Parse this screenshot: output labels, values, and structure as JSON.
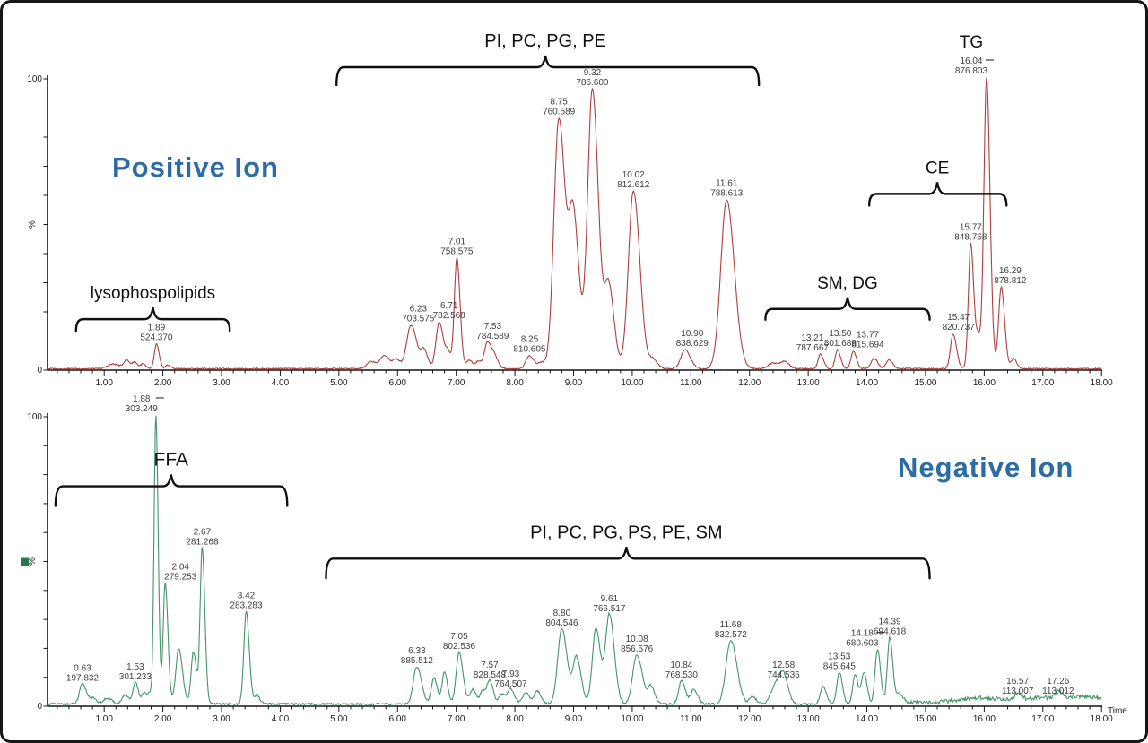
{
  "figure": {
    "background": "#ffffff",
    "border_color": "#161616"
  },
  "chart_data": [
    {
      "type": "line",
      "id": "positive-ion",
      "title": "Positive Ion",
      "title_color": "#2d6ba3",
      "trace_color": "#ad3f3d",
      "xlim": [
        0.05,
        18.0
      ],
      "ylim": [
        0,
        100
      ],
      "x_axis_title": "",
      "y_axis": {
        "max": "100",
        "min": "0",
        "unit": "%"
      },
      "xticks": [
        "1.00",
        "2.00",
        "3.00",
        "4.00",
        "5.00",
        "6.00",
        "7.00",
        "8.00",
        "9.00",
        "10.00",
        "11.00",
        "12.00",
        "13.00",
        "14.00",
        "15.00",
        "16.00",
        "17.00",
        "18.00"
      ],
      "noise": {
        "base": 0.15,
        "seed": 3,
        "regions": [
          {
            "to": 18.1,
            "amp": 0.55
          }
        ]
      },
      "peaks": [
        {
          "t": 1.15,
          "h": 1.6,
          "s": 0.09
        },
        {
          "t": 1.38,
          "h": 2.8,
          "s": 0.045
        },
        {
          "t": 1.52,
          "h": 2.2,
          "s": 0.04
        },
        {
          "t": 1.66,
          "h": 1.6,
          "s": 0.035
        },
        {
          "t": 1.89,
          "h": 8.5,
          "s": 0.035,
          "rt": "1.89",
          "mz": "524.370"
        },
        {
          "t": 2.08,
          "h": 1.2,
          "s": 0.04
        },
        {
          "t": 5.55,
          "h": 2.5,
          "s": 0.07
        },
        {
          "t": 5.78,
          "h": 4.5,
          "s": 0.07
        },
        {
          "t": 5.98,
          "h": 3.0,
          "s": 0.05
        },
        {
          "t": 6.23,
          "h": 15,
          "s": 0.075,
          "rt": "6.23",
          "mz": "703.575",
          "dx": 8
        },
        {
          "t": 6.45,
          "h": 6,
          "s": 0.05
        },
        {
          "t": 6.71,
          "h": 16,
          "s": 0.055,
          "rt": "6.71",
          "mz": "782.568",
          "dx": 11
        },
        {
          "t": 6.86,
          "h": 5,
          "s": 0.04
        },
        {
          "t": 7.01,
          "h": 38,
          "s": 0.042,
          "rt": "7.01",
          "mz": "758.575"
        },
        {
          "t": 7.22,
          "h": 3,
          "s": 0.05
        },
        {
          "t": 7.38,
          "h": 2.5,
          "s": 0.04
        },
        {
          "t": 7.53,
          "h": 9,
          "s": 0.05,
          "rt": "7.53",
          "mz": "784.589",
          "dx": 6
        },
        {
          "t": 7.65,
          "h": 4,
          "s": 0.05
        },
        {
          "t": 8.25,
          "h": 4.5,
          "s": 0.06,
          "rt": "8.25",
          "mz": "810.605"
        },
        {
          "t": 8.45,
          "h": 2,
          "s": 0.05
        },
        {
          "t": 8.75,
          "h": 86,
          "s": 0.085,
          "rt": "8.75",
          "mz": "760.589"
        },
        {
          "t": 9.0,
          "h": 50,
          "s": 0.075
        },
        {
          "t": 9.32,
          "h": 96,
          "s": 0.08,
          "rt": "9.32",
          "mz": "786.600"
        },
        {
          "t": 9.6,
          "h": 28,
          "s": 0.07
        },
        {
          "t": 10.02,
          "h": 61,
          "s": 0.085,
          "rt": "10.02",
          "mz": "812.612"
        },
        {
          "t": 10.35,
          "h": 3,
          "s": 0.06
        },
        {
          "t": 10.9,
          "h": 6.5,
          "s": 0.07,
          "rt": "10.90",
          "mz": "838.629",
          "dx": 8
        },
        {
          "t": 11.61,
          "h": 58,
          "s": 0.1,
          "rt": "11.61",
          "mz": "788.613"
        },
        {
          "t": 12.4,
          "h": 2,
          "s": 0.08
        },
        {
          "t": 12.6,
          "h": 2.2,
          "s": 0.06
        },
        {
          "t": 13.21,
          "h": 5,
          "s": 0.04,
          "rt": "13.21",
          "mz": "787.667",
          "dx": -9
        },
        {
          "t": 13.5,
          "h": 6.5,
          "s": 0.04,
          "rt": "13.50",
          "mz": "801.688",
          "dx": 3
        },
        {
          "t": 13.77,
          "h": 6,
          "s": 0.04,
          "rt": "13.77",
          "mz": "815.694",
          "dx": 16
        },
        {
          "t": 14.12,
          "h": 3.5,
          "s": 0.05
        },
        {
          "t": 14.38,
          "h": 3,
          "s": 0.05
        },
        {
          "t": 15.47,
          "h": 12,
          "s": 0.045,
          "rt": "15.47",
          "mz": "820.737",
          "dx": 6
        },
        {
          "t": 15.77,
          "h": 43,
          "s": 0.04,
          "rt": "15.77",
          "mz": "848.768"
        },
        {
          "t": 15.9,
          "h": 10,
          "s": 0.04
        },
        {
          "t": 16.04,
          "h": 100,
          "s": 0.045,
          "rt": "16.04",
          "mz": "876.803",
          "dx": -17,
          "dash": true
        },
        {
          "t": 16.29,
          "h": 28,
          "s": 0.045,
          "rt": "16.29",
          "mz": "878.812",
          "dx": 10
        },
        {
          "t": 16.5,
          "h": 3.5,
          "s": 0.04
        }
      ],
      "annotations": [
        {
          "type": "brace",
          "label": "PI, PC, PG, PE",
          "t1": 4.96,
          "t2": 12.16,
          "tc": 8.52,
          "pct": 104,
          "font": 20,
          "drop": 20
        },
        {
          "type": "brace",
          "label": "lysophospolipids",
          "t1": 0.52,
          "t2": 3.14,
          "tc": 1.83,
          "pct": 17.5,
          "font": 19,
          "drop": 13
        },
        {
          "type": "brace",
          "label": "SM, DG",
          "t1": 12.27,
          "t2": 15.07,
          "tc": 13.67,
          "pct": 21,
          "font": 19,
          "drop": 12
        },
        {
          "type": "brace",
          "label": "CE",
          "t1": 14.04,
          "t2": 16.38,
          "tc": 15.2,
          "pct": 60.5,
          "font": 19,
          "drop": 13
        },
        {
          "type": "text",
          "label": "TG",
          "tc": 15.78,
          "pct": 113,
          "font": 19
        }
      ]
    },
    {
      "type": "line",
      "id": "negative-ion",
      "title": "Negative Ion",
      "title_color": "#2d6ba3",
      "trace_color": "#449468",
      "marker": {
        "color": "#267a50"
      },
      "xlim": [
        0.05,
        18.0
      ],
      "ylim": [
        0,
        100
      ],
      "x_axis_title": "Time",
      "y_axis": {
        "max": "100",
        "min": "0",
        "unit": "%"
      },
      "xticks": [
        "1.00",
        "2.00",
        "3.00",
        "4.00",
        "5.00",
        "6.00",
        "7.00",
        "8.00",
        "9.00",
        "10.00",
        "11.00",
        "12.00",
        "13.00",
        "14.00",
        "15.00",
        "16.00",
        "17.00",
        "18.00"
      ],
      "noise": {
        "base": 0.2,
        "seed": 11,
        "regions": [
          {
            "to": 14.6,
            "amp": 0.9
          },
          {
            "to": 18.1,
            "amp": 1.9
          }
        ]
      },
      "peaks": [
        {
          "t": 0.63,
          "h": 7,
          "s": 0.05,
          "rt": "0.63",
          "mz": "197.832"
        },
        {
          "t": 0.8,
          "h": 2,
          "s": 0.05
        },
        {
          "t": 1.05,
          "h": 2,
          "s": 0.06
        },
        {
          "t": 1.35,
          "h": 3,
          "s": 0.05
        },
        {
          "t": 1.53,
          "h": 7.5,
          "s": 0.04,
          "rt": "1.53",
          "mz": "301.233"
        },
        {
          "t": 1.68,
          "h": 4,
          "s": 0.035
        },
        {
          "t": 1.78,
          "h": 4,
          "s": 0.03
        },
        {
          "t": 1.88,
          "h": 100,
          "s": 0.03,
          "rt": "1.88",
          "mz": "303.249",
          "dx": -16,
          "dash": true
        },
        {
          "t": 2.04,
          "h": 42,
          "s": 0.035,
          "rt": "2.04",
          "mz": "279.253",
          "dx": 17
        },
        {
          "t": 2.27,
          "h": 19,
          "s": 0.05
        },
        {
          "t": 2.52,
          "h": 18,
          "s": 0.04
        },
        {
          "t": 2.67,
          "h": 54,
          "s": 0.035,
          "rt": "2.67",
          "mz": "281.268"
        },
        {
          "t": 3.42,
          "h": 32,
          "s": 0.04,
          "rt": "3.42",
          "mz": "283.283"
        },
        {
          "t": 3.6,
          "h": 3,
          "s": 0.04
        },
        {
          "t": 6.33,
          "h": 13,
          "s": 0.06,
          "rt": "6.33",
          "mz": "885.512"
        },
        {
          "t": 6.62,
          "h": 9,
          "s": 0.045
        },
        {
          "t": 6.8,
          "h": 11,
          "s": 0.04
        },
        {
          "t": 7.05,
          "h": 18,
          "s": 0.05,
          "rt": "7.05",
          "mz": "802.536"
        },
        {
          "t": 7.28,
          "h": 5,
          "s": 0.05
        },
        {
          "t": 7.45,
          "h": 4.5,
          "s": 0.04
        },
        {
          "t": 7.57,
          "h": 8,
          "s": 0.045,
          "rt": "7.57",
          "mz": "828.548"
        },
        {
          "t": 7.78,
          "h": 3.5,
          "s": 0.05
        },
        {
          "t": 7.93,
          "h": 5,
          "s": 0.05,
          "rt": "7.93",
          "mz": "764.507"
        },
        {
          "t": 8.18,
          "h": 4,
          "s": 0.05
        },
        {
          "t": 8.38,
          "h": 4.5,
          "s": 0.05
        },
        {
          "t": 8.8,
          "h": 26,
          "s": 0.07,
          "rt": "8.80",
          "mz": "804.546"
        },
        {
          "t": 9.05,
          "h": 16,
          "s": 0.06
        },
        {
          "t": 9.38,
          "h": 26,
          "s": 0.06
        },
        {
          "t": 9.61,
          "h": 31,
          "s": 0.065,
          "rt": "9.61",
          "mz": "766.517"
        },
        {
          "t": 10.08,
          "h": 17,
          "s": 0.07,
          "rt": "10.08",
          "mz": "856.576"
        },
        {
          "t": 10.32,
          "h": 6,
          "s": 0.05
        },
        {
          "t": 10.84,
          "h": 8,
          "s": 0.05,
          "rt": "10.84",
          "mz": "768.530"
        },
        {
          "t": 11.05,
          "h": 5,
          "s": 0.05
        },
        {
          "t": 11.68,
          "h": 22,
          "s": 0.08,
          "rt": "11.68",
          "mz": "832.572"
        },
        {
          "t": 12.05,
          "h": 2.5,
          "s": 0.05
        },
        {
          "t": 12.45,
          "h": 7,
          "s": 0.08
        },
        {
          "t": 12.58,
          "h": 8,
          "s": 0.06,
          "rt": "12.58",
          "mz": "744.536"
        },
        {
          "t": 13.25,
          "h": 6,
          "s": 0.045
        },
        {
          "t": 13.53,
          "h": 11,
          "s": 0.04,
          "rt": "13.53",
          "mz": "845.645"
        },
        {
          "t": 13.8,
          "h": 10,
          "s": 0.04
        },
        {
          "t": 13.95,
          "h": 11,
          "s": 0.04
        },
        {
          "t": 14.18,
          "h": 19,
          "s": 0.04,
          "rt": "14.18",
          "mz": "680.603",
          "dx": -17,
          "dash": true
        },
        {
          "t": 14.39,
          "h": 23,
          "s": 0.04,
          "rt": "14.39",
          "mz": "694.618"
        },
        {
          "t": 14.55,
          "h": 4,
          "s": 0.04
        },
        {
          "t": 15.9,
          "h": 1.5,
          "s": 0.3
        },
        {
          "t": 16.57,
          "h": 2.5,
          "s": 0.05,
          "rt": "16.57",
          "mz": "113.007"
        },
        {
          "t": 17.0,
          "h": 1.5,
          "s": 0.3
        },
        {
          "t": 17.26,
          "h": 2.5,
          "s": 0.05,
          "rt": "17.26",
          "mz": "113.012"
        },
        {
          "t": 17.7,
          "h": 1.8,
          "s": 0.25
        }
      ],
      "annotations": [
        {
          "type": "brace",
          "label": "FFA",
          "t1": 0.17,
          "t2": 4.12,
          "tc": 2.14,
          "pct": 76,
          "font": 21,
          "drop": 22
        },
        {
          "type": "brace",
          "label": "PI, PC, PG, PS, PE, SM",
          "t1": 4.78,
          "t2": 15.07,
          "tc": 9.9,
          "pct": 51,
          "font": 20,
          "drop": 22
        }
      ]
    }
  ]
}
